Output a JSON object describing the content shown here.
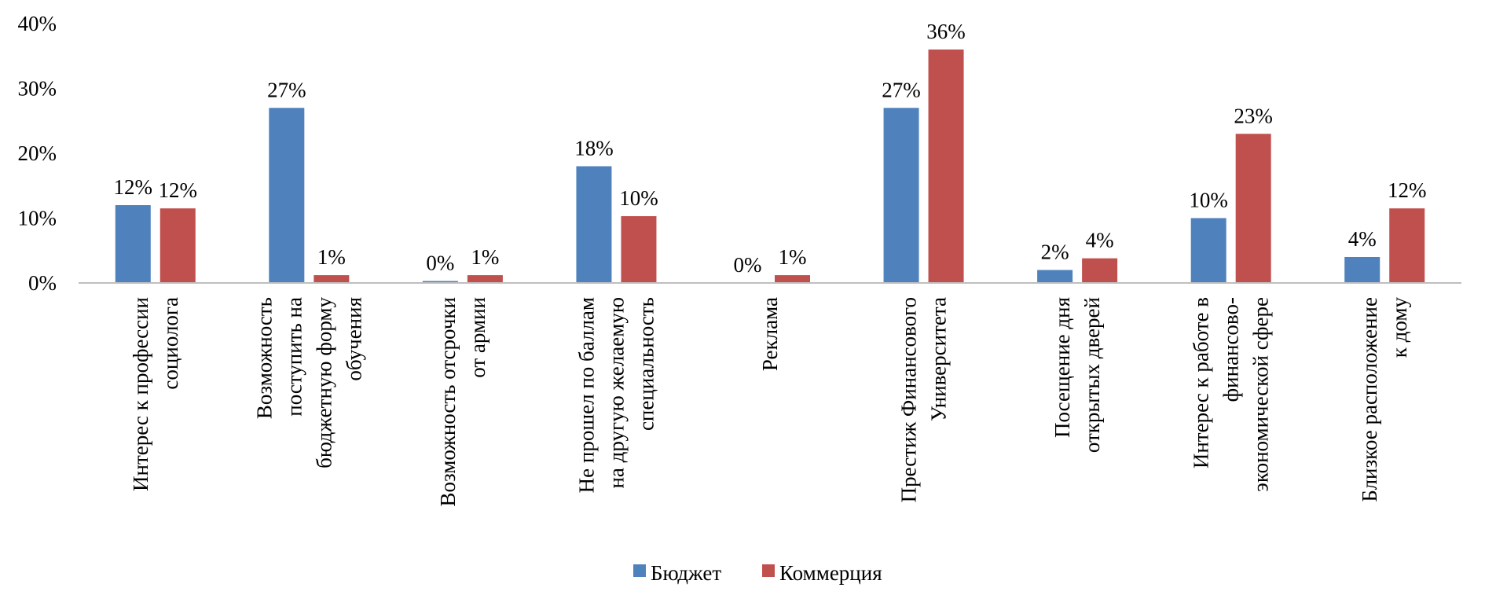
{
  "chart_data": {
    "type": "bar",
    "categories": [
      [
        "Интерес к профессии",
        "социолога"
      ],
      [
        "Возможность",
        "поступить на",
        "бюджетную форму",
        "обучения"
      ],
      [
        "Возможность отсрочки",
        "от армии"
      ],
      [
        "Не прошел по баллам",
        "на другую желаемую",
        "специальность"
      ],
      [
        "Реклама"
      ],
      [
        "Престиж Финансового",
        "Университета"
      ],
      [
        "Посещение дня",
        "открытых дверей"
      ],
      [
        "Интерес к работе в",
        "финансово-",
        "экономической сфере"
      ],
      [
        "Близкое расположение",
        "к дому"
      ]
    ],
    "series": [
      {
        "name": "Бюджет",
        "color": "#4F81BD",
        "values": [
          12,
          27,
          0.3,
          18,
          0,
          27,
          2,
          10,
          4
        ],
        "labels": [
          "12%",
          "27%",
          "0%",
          "18%",
          "0%",
          "27%",
          "2%",
          "10%",
          "4%"
        ]
      },
      {
        "name": "Коммерция",
        "color": "#C0504D",
        "values": [
          11.5,
          1.2,
          1.2,
          10.3,
          1.2,
          36,
          3.8,
          23,
          11.5
        ],
        "labels": [
          "12%",
          "1%",
          "1%",
          "10%",
          "1%",
          "36%",
          "4%",
          "23%",
          "12%"
        ]
      }
    ],
    "yticks": [
      "0%",
      "10%",
      "20%",
      "30%",
      "40%"
    ],
    "ylim": [
      0,
      40
    ],
    "legend_position": "bottom",
    "grid": false
  }
}
